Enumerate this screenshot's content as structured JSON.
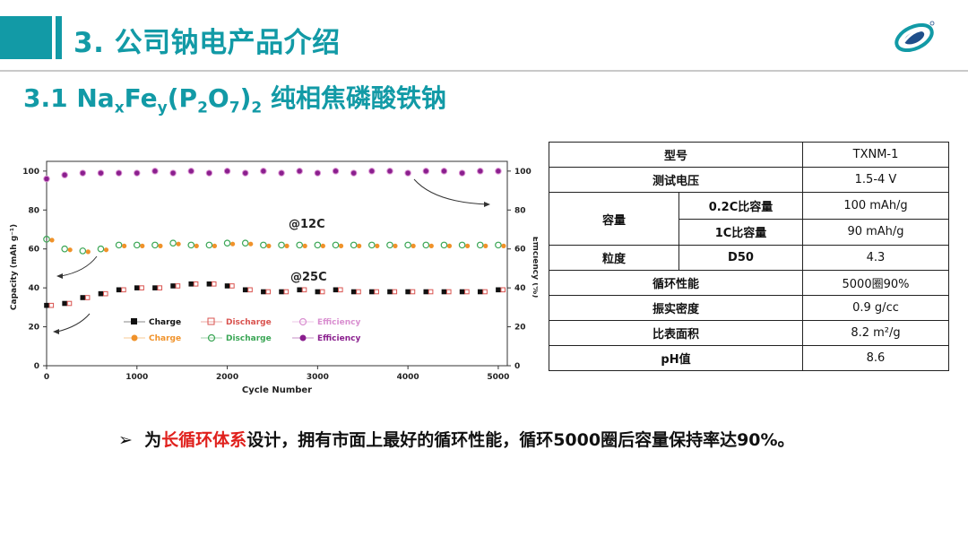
{
  "header": {
    "title": "3. 公司钠电产品介绍"
  },
  "subtitle": {
    "prefix": "3.1 Na",
    "sub_x": "x",
    "fe": "Fe",
    "sub_y": "y",
    "p": "(P",
    "sub_2a": "2",
    "o": "O",
    "sub_7": "7",
    "close": ")",
    "sub_2b": "2",
    "suffix": " 纯相焦磷酸铁钠"
  },
  "chart_data": {
    "type": "scatter",
    "xlabel": "Cycle Number",
    "ylabel_left": "Capacity (mAh g⁻¹)",
    "ylabel_right": "Efficiency (%)",
    "xlim": [
      0,
      5100
    ],
    "ylim": [
      0,
      105
    ],
    "x_ticks": [
      "0",
      "1000",
      "2000",
      "3000",
      "4000",
      "5000"
    ],
    "y_ticks": [
      "0",
      "20",
      "40",
      "60",
      "80",
      "100"
    ],
    "annotations": [
      "@12C",
      "@25C"
    ],
    "legend": [
      {
        "label": "Charge",
        "color": "#111111",
        "marker": "square-filled"
      },
      {
        "label": "Discharge",
        "color": "#d9534f",
        "marker": "square-open"
      },
      {
        "label": "Efficiency",
        "color": "#d98fd0",
        "marker": "circle-open"
      },
      {
        "label": "Charge",
        "color": "#f0922a",
        "marker": "circle-filled"
      },
      {
        "label": "Discharge",
        "color": "#3aa655",
        "marker": "circle-open"
      },
      {
        "label": "Efficiency",
        "color": "#8a1f8e",
        "marker": "circle-filled"
      }
    ],
    "series": [
      {
        "name": "Efficiency",
        "color": "#8a1f8e",
        "x": [
          0,
          200,
          400,
          600,
          800,
          1000,
          1200,
          1400,
          1600,
          1800,
          2000,
          2200,
          2400,
          2600,
          2800,
          3000,
          3200,
          3400,
          3600,
          3800,
          4000,
          4200,
          4400,
          4600,
          4800,
          5000
        ],
        "values": [
          96,
          98,
          99,
          99,
          99,
          99,
          100,
          99,
          100,
          99,
          100,
          99,
          100,
          99,
          100,
          99,
          100,
          99,
          100,
          100,
          99,
          100,
          100,
          99,
          100,
          100
        ]
      },
      {
        "name": "Discharge",
        "color": "#3aa655",
        "x": [
          0,
          200,
          400,
          600,
          800,
          1000,
          1200,
          1400,
          1600,
          1800,
          2000,
          2200,
          2400,
          2600,
          2800,
          3000,
          3200,
          3400,
          3600,
          3800,
          4000,
          4200,
          4400,
          4600,
          4800,
          5000
        ],
        "values": [
          65,
          60,
          59,
          60,
          62,
          62,
          62,
          63,
          62,
          62,
          63,
          63,
          62,
          62,
          62,
          62,
          62,
          62,
          62,
          62,
          62,
          62,
          62,
          62,
          62,
          62
        ]
      },
      {
        "name": "Charge",
        "color": "#111111",
        "x": [
          0,
          200,
          400,
          600,
          800,
          1000,
          1200,
          1400,
          1600,
          1800,
          2000,
          2200,
          2400,
          2600,
          2800,
          3000,
          3200,
          3400,
          3600,
          3800,
          4000,
          4200,
          4400,
          4600,
          4800,
          5000
        ],
        "values": [
          31,
          32,
          35,
          37,
          39,
          40,
          40,
          41,
          42,
          42,
          41,
          39,
          38,
          38,
          39,
          38,
          39,
          38,
          38,
          38,
          38,
          38,
          38,
          38,
          38,
          39
        ]
      }
    ]
  },
  "table": {
    "rows": [
      {
        "label": "型号",
        "value": "TXNM-1"
      },
      {
        "label": "测试电压",
        "value": "1.5-4 V"
      },
      {
        "label": "容量",
        "sub1": "0.2C比容量",
        "value1": "100 mAh/g",
        "sub2": "1C比容量",
        "value2": "90 mAh/g"
      },
      {
        "label": "粒度",
        "sub": "D50",
        "value": "4.3"
      },
      {
        "label": "循环性能",
        "value": "5000圈90%"
      },
      {
        "label": "振实密度",
        "value": "0.9 g/cc"
      },
      {
        "label": "比表面积",
        "value": "8.2 m²/g"
      },
      {
        "label": "pH值",
        "value": "8.6"
      }
    ]
  },
  "bullet": {
    "arrow": "➢",
    "pre": "为",
    "highlight": "长循环体系",
    "post": "设计，拥有市面上最好的循环性能，循环5000圈后容量保持率达90%。"
  },
  "colors": {
    "accent": "#129aa6",
    "highlight": "#e0201c"
  }
}
